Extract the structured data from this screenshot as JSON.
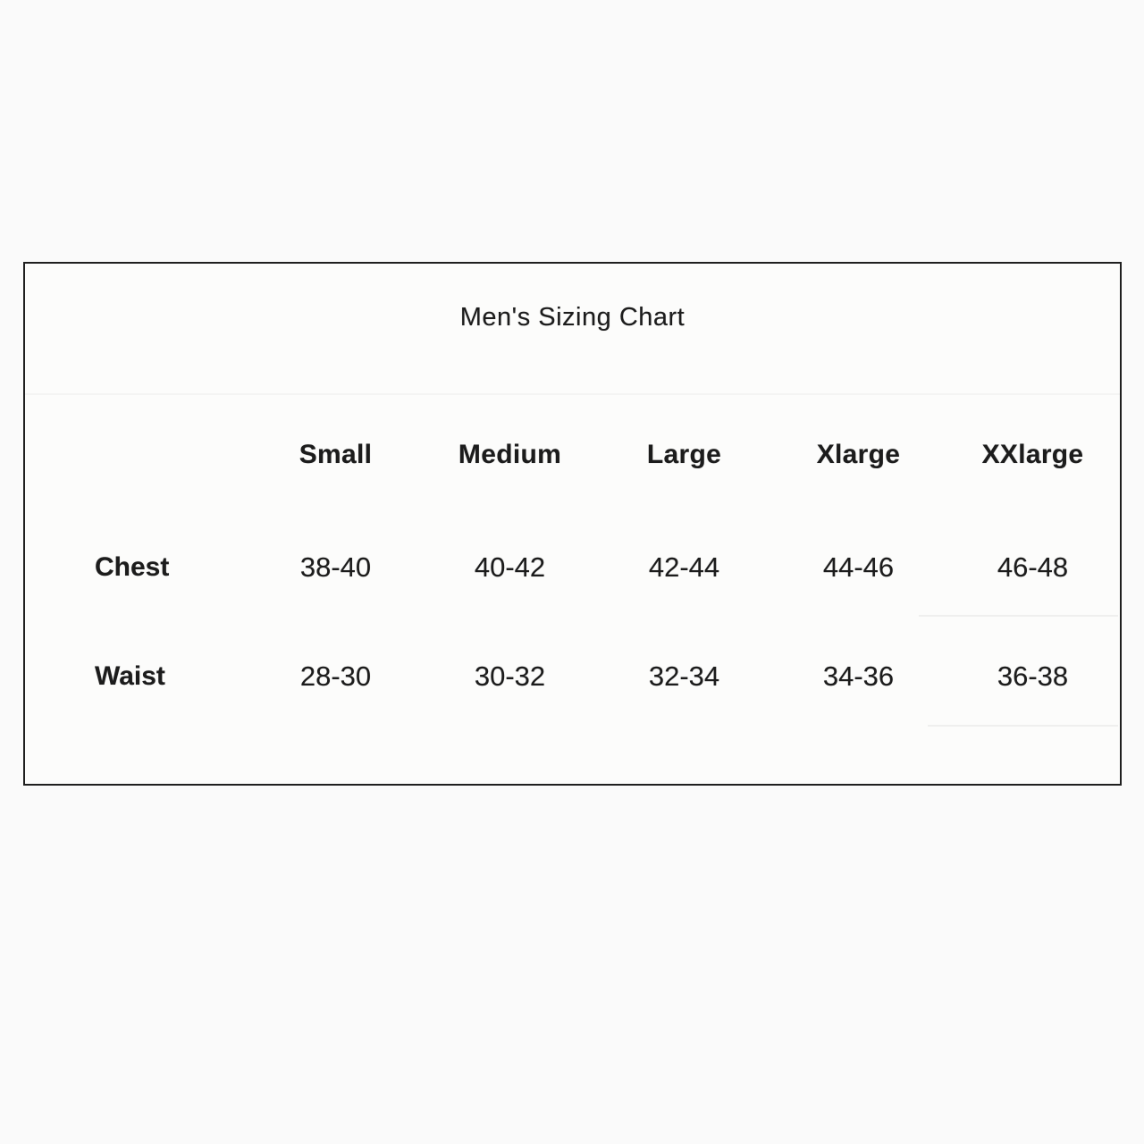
{
  "page": {
    "background": "#fdfdfd",
    "box_border_color": "#1f1f1f",
    "text_color": "#1c1c1c"
  },
  "chart_data": {
    "type": "table",
    "title": "Men's Sizing Chart",
    "columns": [
      "Small",
      "Medium",
      "Large",
      "Xlarge",
      "XXlarge"
    ],
    "rows": [
      {
        "label": "Chest",
        "values": [
          "38-40",
          "40-42",
          "42-44",
          "44-46",
          "46-48"
        ]
      },
      {
        "label": "Waist",
        "values": [
          "28-30",
          "30-32",
          "32-34",
          "34-36",
          "36-38"
        ]
      }
    ]
  }
}
